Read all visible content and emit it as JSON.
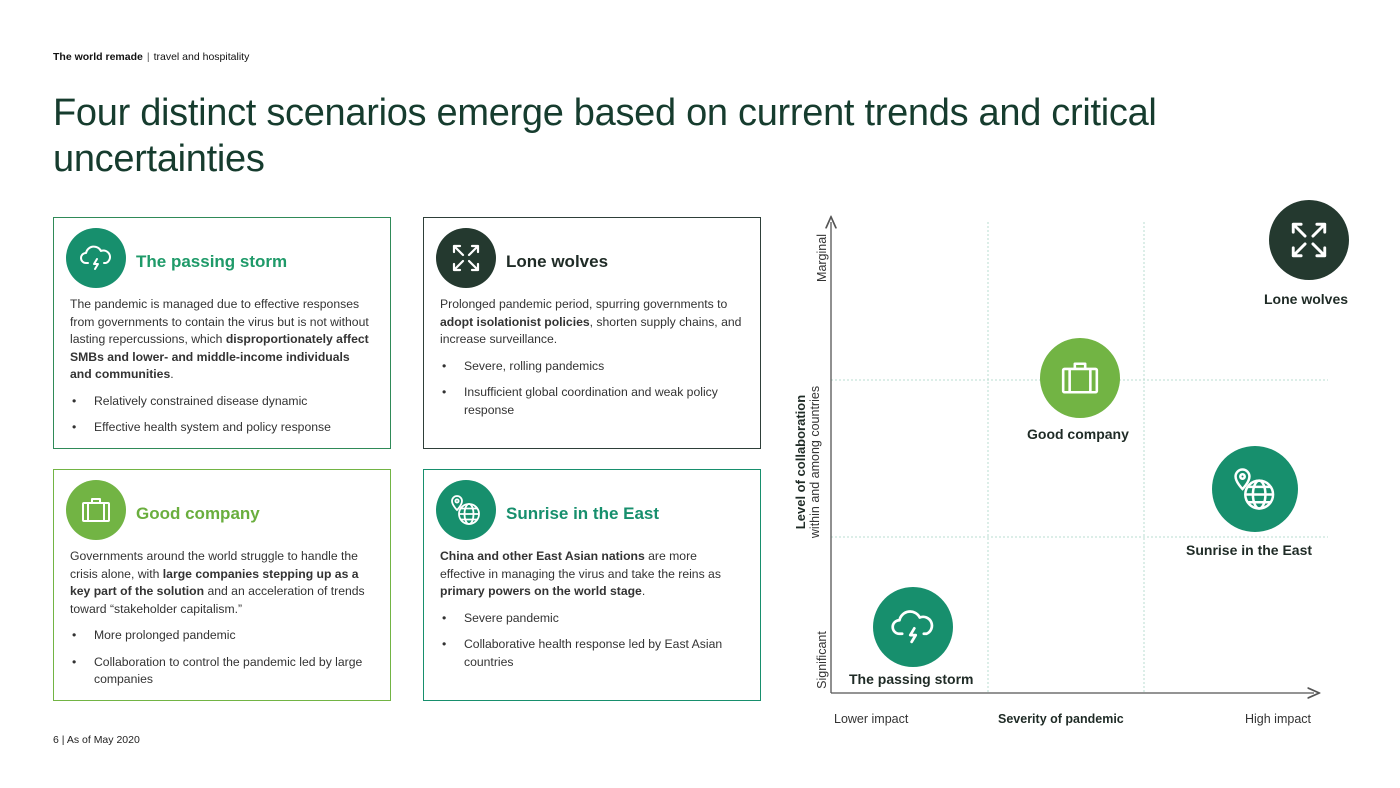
{
  "header": {
    "kicker_bold": "The world remade",
    "kicker_sep": "|",
    "kicker_rest": "travel and hospitality",
    "title": "Four distinct scenarios emerge based on current trends and critical uncertainties"
  },
  "colors": {
    "green": "#2f9a67",
    "teal": "#178f6d",
    "lime": "#72b444",
    "dark": "#24392f"
  },
  "cards": {
    "passing_storm": {
      "icon": "cloud-lightning-icon",
      "title": "The passing storm",
      "p1": "The pandemic is managed due to effective responses from governments to contain the virus but is not without lasting repercussions, which ",
      "p1_bold": "disproportionately affect SMBs and lower- and middle-income individuals and communities",
      "p1_end": ".",
      "bullets": [
        "Relatively constrained disease dynamic",
        "Effective health system and policy response"
      ]
    },
    "lone_wolves": {
      "icon": "arrows-outward-icon",
      "title": "Lone wolves",
      "p1": "Prolonged pandemic period, spurring governments to ",
      "p1_bold": "adopt isolationist policies",
      "p1_end": ", shorten supply chains, and increase surveillance.",
      "bullets": [
        "Severe, rolling pandemics",
        "Insufficient global coordination and weak policy response"
      ]
    },
    "good_company": {
      "icon": "briefcase-icon",
      "title": "Good company",
      "p1": "Governments around the world struggle to handle the crisis alone, with ",
      "p1_bold": "large companies stepping up as a key part of the solution",
      "p1_end": " and an acceleration of trends toward “stakeholder capitalism.”",
      "bullets": [
        "More prolonged pandemic",
        "Collaboration to control the pandemic led by large companies"
      ]
    },
    "sunrise_east": {
      "icon": "globe-pin-icon",
      "title": "Sunrise in the East",
      "p1_bold": "China and other East Asian nations",
      "p1": " are more effective in managing the virus and take the reins as ",
      "p1_bold2": "primary powers on the world stage",
      "p1_end": ".",
      "bullets": [
        "Severe pandemic",
        "Collaborative health response led by East Asian countries"
      ]
    }
  },
  "matrix": {
    "y_top": "Marginal",
    "y_bottom": "Significant",
    "y_title": "Level of collaboration",
    "y_subtitle": "within and among countries",
    "x_left": "Lower impact",
    "x_title": "Severity of pandemic",
    "x_right": "High impact",
    "nodes": {
      "lone_wolves": "Lone wolves",
      "good_company": "Good company",
      "sunrise_east": "Sunrise in the East",
      "passing_storm": "The passing storm"
    }
  },
  "footer": {
    "page": "6",
    "sep": "|",
    "date": "As of May 2020"
  }
}
